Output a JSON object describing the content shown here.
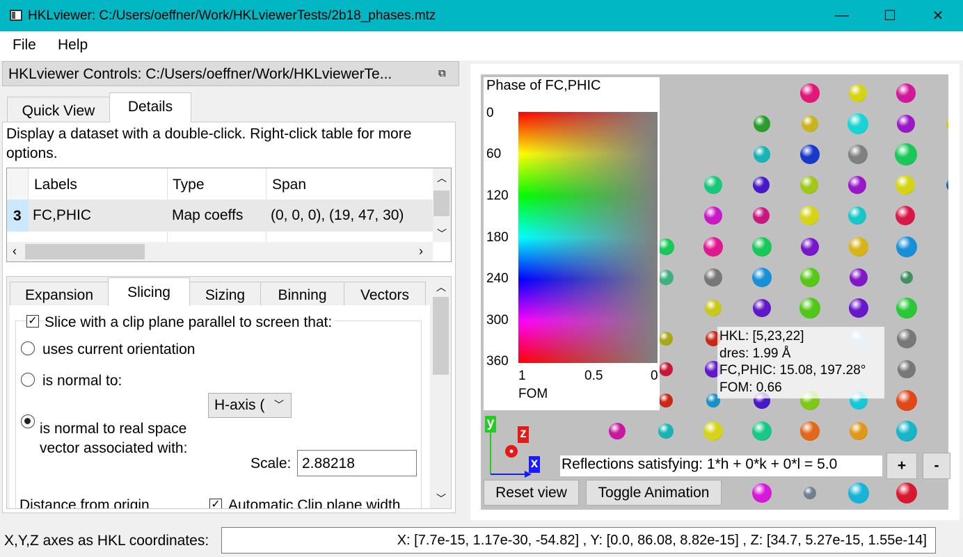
{
  "window": {
    "title": "HKLviewer: C:/Users/oeffner/Work/HKLviewerTests/2b18_phases.mtz",
    "minimize": "—",
    "maximize": "☐",
    "close": "✕"
  },
  "menu": {
    "file": "File",
    "help": "Help"
  },
  "dock": {
    "title": "HKLviewer Controls: C:/Users/oeffner/Work/HKLviewerTe...",
    "float_icon": "⧉"
  },
  "top_tabs": [
    {
      "label": "Quick View"
    },
    {
      "label": "Details"
    }
  ],
  "details": {
    "hint": "Display a dataset with a double-click. Right-click table for more",
    "hint2": "options.",
    "table": {
      "headers": [
        "Labels",
        "Type",
        "Span"
      ],
      "rows": [
        {
          "num": "3",
          "label": "FC,PHIC",
          "type": "Map coeffs",
          "span": "(0, 0, 0), (19, 47, 30)"
        }
      ]
    }
  },
  "lower_tabs": [
    {
      "label": "Expansion"
    },
    {
      "label": "Slicing"
    },
    {
      "label": "Sizing"
    },
    {
      "label": "Binning"
    },
    {
      "label": "Vectors"
    }
  ],
  "slicing": {
    "clip_checkbox": "Slice with a clip plane parallel to screen that:",
    "clip_checked": true,
    "opt_current": "uses current orientation",
    "opt_normal": "is normal to:",
    "axis_select": "H-axis (",
    "opt_real_1": "is normal to real space",
    "opt_real_2": "vector associated with:",
    "scale_label": "Scale:",
    "scale_value": "2.88218",
    "distance_label": "Distance from origin",
    "auto_clip_label": "Automatic Clip plane width",
    "auto_clip_checked": true
  },
  "legend": {
    "title": "Phase of FC,PHIC",
    "phase_ticks": [
      "0",
      "60",
      "120",
      "180",
      "240",
      "300",
      "360"
    ],
    "fom_ticks": [
      "1",
      "0.5",
      "0"
    ],
    "fom_label": "FOM"
  },
  "hover": {
    "hkl": "HKL: [5,23,22]",
    "dres": "dres: 1.99 Å",
    "fc": "FC,PHIC: 15.08, 197.28°",
    "fom": "FOM: 0.66"
  },
  "axes": {
    "x": "x",
    "y": "y",
    "z": "z",
    "x_color": "#1a1aff",
    "y_color": "#22cc22",
    "z_color": "#e61919"
  },
  "reflections_text": "Reflections satisfying: 1*h + 0*k + 0*l = 5.0",
  "buttons": {
    "plus": "+",
    "minus": "-",
    "reset_view": "Reset view",
    "toggle_animation": "Toggle Animation"
  },
  "status": {
    "label": "X,Y,Z axes as HKL coordinates:",
    "value": "X: [7.7e-15, 1.17e-30, -54.82] , Y: [0.0, 86.08, 8.82e-15] , Z: [34.7, 5.27e-15, 1.55e-14]"
  },
  "colors": {
    "titlebar": "#00b7c3",
    "scene_bg": "#c0c0c0",
    "selected_row": "#cce8ff"
  }
}
